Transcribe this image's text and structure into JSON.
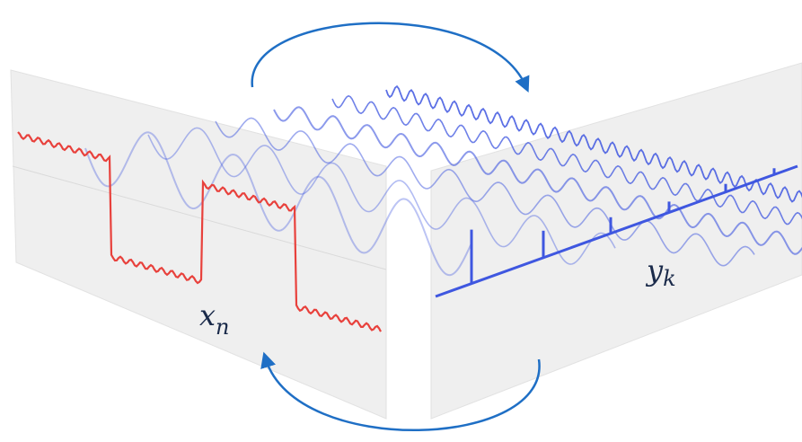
{
  "labels": {
    "left": {
      "base": "x",
      "sub": "n"
    },
    "right": {
      "base": "y",
      "sub": "k"
    }
  }
}
